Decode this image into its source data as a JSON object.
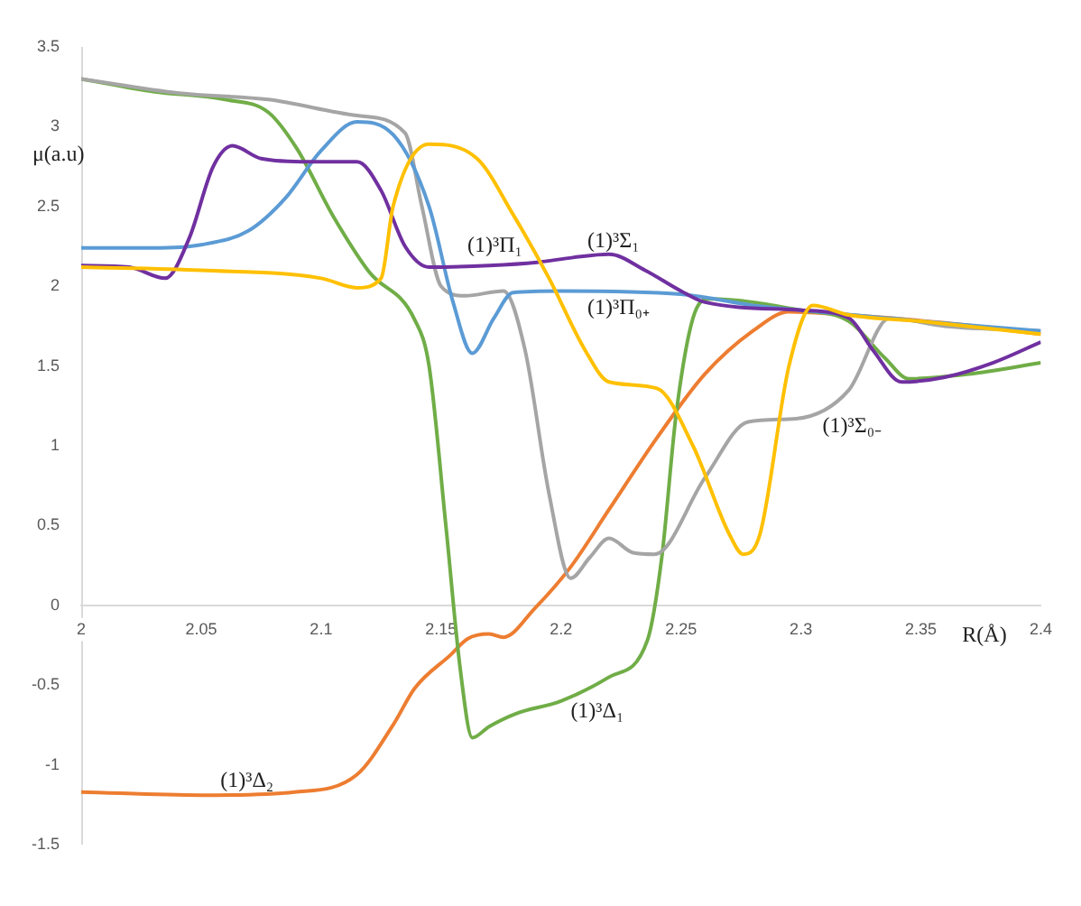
{
  "chart_data": {
    "type": "line",
    "xlabel": "R(Å)",
    "ylabel": "μ(a.u)",
    "xlim": [
      2,
      2.4
    ],
    "xticks": [
      2,
      2.05,
      2.1,
      2.15,
      2.2,
      2.25,
      2.3,
      2.35,
      2.4
    ],
    "ylim": [
      -1.5,
      3.5
    ],
    "yticks": [
      -1.5,
      -1,
      -0.5,
      0,
      0.5,
      1,
      1.5,
      2,
      2.5,
      3,
      3.5
    ],
    "grid": false,
    "legend": false,
    "marker": "none",
    "series": [
      {
        "color": "#ffc000",
        "x": [
          2,
          2.05,
          2.1,
          2.115,
          2.125,
          2.13,
          2.145,
          2.165,
          2.18,
          2.195,
          2.21,
          2.22,
          2.24,
          2.255,
          2.27,
          2.276,
          2.283,
          2.295,
          2.305,
          2.32,
          2.35,
          2.4
        ],
        "values": [
          2.12,
          2.1,
          2.05,
          1.99,
          2.05,
          2.5,
          2.89,
          2.8,
          2.45,
          2.05,
          1.6,
          1.4,
          1.36,
          1.0,
          0.45,
          0.32,
          0.45,
          1.5,
          1.88,
          1.82,
          1.78,
          1.7
        ]
      },
      {
        "color": "#7030a0",
        "x": [
          2,
          2.02,
          2.035,
          2.045,
          2.055,
          2.063,
          2.075,
          2.095,
          2.115,
          2.125,
          2.135,
          2.145,
          2.17,
          2.19,
          2.205,
          2.22,
          2.235,
          2.25,
          2.26,
          2.3,
          2.32,
          2.33,
          2.342,
          2.36,
          2.38,
          2.4
        ],
        "values": [
          2.13,
          2.12,
          2.05,
          2.3,
          2.75,
          2.88,
          2.8,
          2.78,
          2.78,
          2.6,
          2.25,
          2.12,
          2.13,
          2.15,
          2.18,
          2.2,
          2.1,
          1.97,
          1.9,
          1.85,
          1.8,
          1.6,
          1.4,
          1.43,
          1.52,
          1.65
        ]
      },
      {
        "color": "#5b9bd5",
        "x": [
          2,
          2.03,
          2.05,
          2.07,
          2.085,
          2.1,
          2.115,
          2.13,
          2.145,
          2.155,
          2.163,
          2.172,
          2.18,
          2.2,
          2.25,
          2.26,
          2.28,
          2.3,
          2.35,
          2.4
        ],
        "values": [
          2.24,
          2.24,
          2.26,
          2.35,
          2.55,
          2.85,
          3.03,
          2.95,
          2.5,
          1.9,
          1.58,
          1.8,
          1.96,
          1.97,
          1.95,
          1.93,
          1.88,
          1.85,
          1.78,
          1.72
        ]
      },
      {
        "color": "#a5a5a5",
        "x": [
          2,
          2.041,
          2.078,
          2.115,
          2.135,
          2.142,
          2.15,
          2.16,
          2.176,
          2.185,
          2.195,
          2.204,
          2.212,
          2.22,
          2.23,
          2.239,
          2.26,
          2.278,
          2.298,
          2.32,
          2.337,
          2.36,
          2.4
        ],
        "values": [
          3.3,
          3.21,
          3.17,
          3.07,
          2.96,
          2.5,
          2.0,
          1.94,
          1.97,
          1.6,
          0.7,
          0.17,
          0.3,
          0.42,
          0.33,
          0.32,
          0.8,
          1.15,
          1.17,
          1.35,
          1.8,
          1.75,
          1.72
        ]
      },
      {
        "color": "#70ad47",
        "x": [
          2,
          2.03,
          2.06,
          2.078,
          2.09,
          2.105,
          2.12,
          2.139,
          2.145,
          2.152,
          2.158,
          2.163,
          2.17,
          2.181,
          2.2,
          2.22,
          2.236,
          2.242,
          2.248,
          2.255,
          2.262,
          2.3,
          2.32,
          2.335,
          2.345,
          2.37,
          2.4
        ],
        "values": [
          3.3,
          3.22,
          3.17,
          3.09,
          2.86,
          2.44,
          2.09,
          1.79,
          1.5,
          0.5,
          -0.4,
          -0.83,
          -0.76,
          -0.68,
          -0.6,
          -0.45,
          -0.22,
          0.3,
          1.2,
          1.8,
          1.92,
          1.85,
          1.78,
          1.55,
          1.42,
          1.45,
          1.52
        ]
      },
      {
        "color": "#ed7d31",
        "x": [
          2,
          2.05,
          2.089,
          2.115,
          2.13,
          2.139,
          2.154,
          2.161,
          2.17,
          2.176,
          2.189,
          2.204,
          2.22,
          2.24,
          2.26,
          2.28,
          2.295,
          2.32,
          2.36,
          2.4
        ],
        "values": [
          -1.17,
          -1.19,
          -1.17,
          -1.06,
          -0.75,
          -0.52,
          -0.31,
          -0.21,
          -0.18,
          -0.2,
          -0.02,
          0.24,
          0.6,
          1.05,
          1.45,
          1.72,
          1.84,
          1.82,
          1.77,
          1.7
        ]
      }
    ],
    "annotations": [
      {
        "text": "(1)³Π₁",
        "x": 2.161,
        "y": 2.17
      },
      {
        "text": "(1)³Σ₁",
        "x": 2.211,
        "y": 2.2
      },
      {
        "text": "(1)³Π₀₊",
        "x": 2.211,
        "y": 1.94
      },
      {
        "text": "(1)³Σ₀₋",
        "x": 2.309,
        "y": 1.2
      },
      {
        "text": "(1)³Δ₁",
        "x": 2.204,
        "y": -0.59
      },
      {
        "text": "(1)³Δ₂",
        "x": 2.058,
        "y": -1.18
      }
    ]
  }
}
